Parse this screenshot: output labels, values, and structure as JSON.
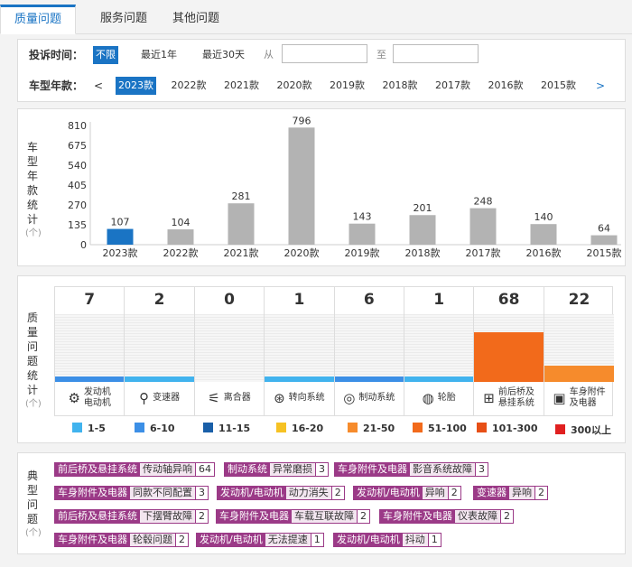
{
  "tabs": [
    {
      "label": "质量问题",
      "active": true
    },
    {
      "label": "服务问题",
      "active": false
    },
    {
      "label": "其他问题",
      "active": false
    }
  ],
  "filter": {
    "time_label": "投诉时间：",
    "time_options": [
      {
        "label": "不限",
        "active": true
      },
      {
        "label": "最近1年",
        "active": false
      },
      {
        "label": "最近30天",
        "active": false
      }
    ],
    "from_label": "从",
    "to_label": "至",
    "from_value": "",
    "to_value": "",
    "year_label": "车型年款：",
    "prev_arrow": "<",
    "next_arrow": ">",
    "years": [
      {
        "label": "2023款",
        "active": true
      },
      {
        "label": "2022款",
        "active": false
      },
      {
        "label": "2021款",
        "active": false
      },
      {
        "label": "2020款",
        "active": false
      },
      {
        "label": "2019款",
        "active": false
      },
      {
        "label": "2018款",
        "active": false
      },
      {
        "label": "2017款",
        "active": false
      },
      {
        "label": "2016款",
        "active": false
      },
      {
        "label": "2015款",
        "active": false
      }
    ]
  },
  "year_chart": {
    "side_label": [
      "车",
      "型",
      "年",
      "款",
      "统",
      "计"
    ],
    "unit": "(个)",
    "chart_data": {
      "type": "bar",
      "categories": [
        "2023款",
        "2022款",
        "2021款",
        "2020款",
        "2019款",
        "2018款",
        "2017款",
        "2016款",
        "2015款"
      ],
      "values": [
        107,
        104,
        281,
        796,
        143,
        201,
        248,
        140,
        64
      ],
      "yticks": [
        "0",
        "135",
        "270",
        "405",
        "540",
        "675",
        "810"
      ],
      "ylim": [
        0,
        810
      ],
      "highlight_index": 0,
      "bar_color": "#b3b3b3",
      "highlight_color": "#1a74c4"
    }
  },
  "quality": {
    "side_label": [
      "质",
      "量",
      "问",
      "题",
      "统",
      "计"
    ],
    "unit": "(个)",
    "scale_max": 68,
    "items": [
      {
        "count": "7",
        "value": 7,
        "label": "发动机\n电动机",
        "icon": "engine-icon",
        "color": "#3c8fe6"
      },
      {
        "count": "2",
        "value": 2,
        "label": "变速器",
        "icon": "gearshift-icon",
        "color": "#41b3ee"
      },
      {
        "count": "0",
        "value": 0,
        "label": "离合器",
        "icon": "clutch-icon",
        "color": "#41b3ee"
      },
      {
        "count": "1",
        "value": 1,
        "label": "转向系统",
        "icon": "steering-wheel-icon",
        "color": "#41b3ee"
      },
      {
        "count": "6",
        "value": 6,
        "label": "制动系统",
        "icon": "brake-disc-icon",
        "color": "#3c8fe6"
      },
      {
        "count": "1",
        "value": 1,
        "label": "轮胎",
        "icon": "tire-icon",
        "color": "#41b3ee"
      },
      {
        "count": "68",
        "value": 68,
        "label": "前后桥及\n悬挂系统",
        "icon": "axle-icon",
        "color": "#f26a1b"
      },
      {
        "count": "22",
        "value": 22,
        "label": "车身附件\n及电器",
        "icon": "battery-icon",
        "color": "#f68b2c"
      }
    ],
    "legend": [
      {
        "label": "1-5",
        "color": "#41b3ee"
      },
      {
        "label": "6-10",
        "color": "#3c8fe6"
      },
      {
        "label": "11-15",
        "color": "#1a5fa8"
      },
      {
        "label": "16-20",
        "color": "#f6c223"
      },
      {
        "label": "21-50",
        "color": "#f68b2c"
      },
      {
        "label": "51-100",
        "color": "#f26a1b"
      },
      {
        "label": "101-300",
        "color": "#e74f16"
      },
      {
        "label": "300以上",
        "color": "#e02020"
      }
    ]
  },
  "typical": {
    "side_label": [
      "典",
      "型",
      "问",
      "题"
    ],
    "unit": "(个)",
    "rows": [
      [
        {
          "cat": "前后桥及悬挂系统",
          "desc": "传动轴异响",
          "cnt": "64"
        },
        {
          "cat": "制动系统",
          "desc": "异常磨损",
          "cnt": "3"
        },
        {
          "cat": "车身附件及电器",
          "desc": "影音系统故障",
          "cnt": "3"
        }
      ],
      [
        {
          "cat": "车身附件及电器",
          "desc": "同款不同配置",
          "cnt": "3"
        },
        {
          "cat": "发动机/电动机",
          "desc": "动力消失",
          "cnt": "2"
        },
        {
          "cat": "发动机/电动机",
          "desc": "异响",
          "cnt": "2"
        },
        {
          "cat": "变速器",
          "desc": "异响",
          "cnt": "2"
        }
      ],
      [
        {
          "cat": "前后桥及悬挂系统",
          "desc": "下摆臂故障",
          "cnt": "2"
        },
        {
          "cat": "车身附件及电器",
          "desc": "车载互联故障",
          "cnt": "2"
        },
        {
          "cat": "车身附件及电器",
          "desc": "仪表故障",
          "cnt": "2"
        }
      ],
      [
        {
          "cat": "车身附件及电器",
          "desc": "轮毂问题",
          "cnt": "2"
        },
        {
          "cat": "发动机/电动机",
          "desc": "无法提速",
          "cnt": "1"
        },
        {
          "cat": "发动机/电动机",
          "desc": "抖动",
          "cnt": "1"
        }
      ]
    ]
  }
}
